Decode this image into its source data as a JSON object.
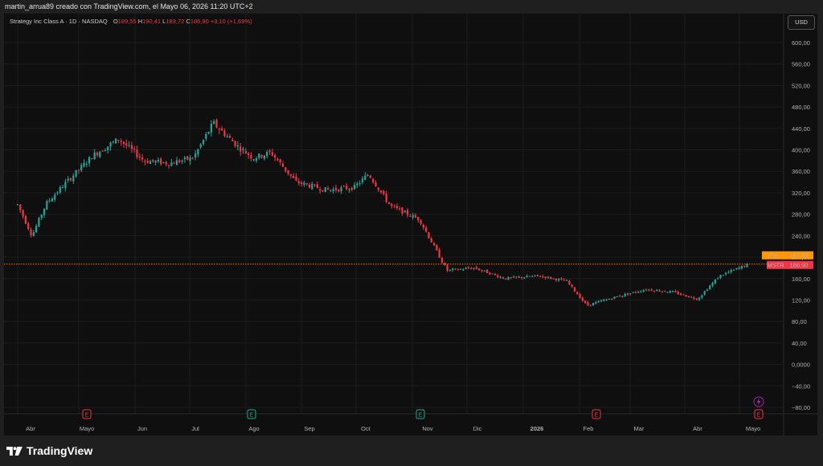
{
  "header": {
    "creator_line": "martin_arrua89 creado con TradingView.com, el Mayo 06, 2026 11:20 UTC+2"
  },
  "legend": {
    "symbol": "Strategy Inc Class A · 1D · NASDAQ",
    "o_label": "O",
    "o_value": "189,55",
    "h_label": "H",
    "h_value": "190,41",
    "l_label": "L",
    "l_value": "183,72",
    "c_label": "C",
    "c_value": "186,90",
    "change": "+3,10 (+1,69%)"
  },
  "currency_button": "USD",
  "brand": {
    "name": "TradingView"
  },
  "colors": {
    "up": "#26a69a",
    "down": "#f23645",
    "pre_tag": "#ff9800",
    "last_price_tag": "#f23645",
    "earnings_down": "#f23645",
    "earnings_up": "#22ab94",
    "dividend_icon": "#9c27b0"
  },
  "price_tags": {
    "pre_label": "Pre",
    "pre_value": "187,00",
    "symbol_label": "MSTR",
    "last_value": "186,90"
  },
  "earnings_markers": [
    {
      "month": "Mayo",
      "label": "E",
      "kind": "down"
    },
    {
      "month": "Ago",
      "label": "E",
      "kind": "up"
    },
    {
      "month": "Nov",
      "label": "E",
      "kind": "up"
    },
    {
      "month": "Feb",
      "label": "E",
      "kind": "down"
    },
    {
      "month": "Mayo-2026",
      "label": "E",
      "kind": "down"
    }
  ],
  "chart_data": {
    "type": "candlestick",
    "x_tick_labels": [
      "Abr",
      "Mayo",
      "Jun",
      "Jul",
      "Ago",
      "Sep",
      "Oct",
      "Nov",
      "Dic",
      "2026",
      "Feb",
      "Mar",
      "Abr",
      "Mayo"
    ],
    "y_tick_labels": [
      "600,00",
      "560,00",
      "520,00",
      "480,00",
      "440,00",
      "400,00",
      "360,00",
      "320,00",
      "280,00",
      "240,00",
      "200,00",
      "160,00",
      "120,00",
      "80,00",
      "40,00",
      "0,0000",
      "−40,00",
      "−80,00"
    ],
    "ylim": [
      -92,
      620
    ],
    "grid": true,
    "last_price": 186.9,
    "series_close_approx": [
      {
        "x": "2025-04-01",
        "y": 298
      },
      {
        "x": "2025-04-08",
        "y": 240
      },
      {
        "x": "2025-04-15",
        "y": 300
      },
      {
        "x": "2025-04-25",
        "y": 340
      },
      {
        "x": "2025-05-09",
        "y": 390
      },
      {
        "x": "2025-05-23",
        "y": 420
      },
      {
        "x": "2025-06-06",
        "y": 380
      },
      {
        "x": "2025-06-20",
        "y": 375
      },
      {
        "x": "2025-07-03",
        "y": 385
      },
      {
        "x": "2025-07-14",
        "y": 450
      },
      {
        "x": "2025-07-28",
        "y": 405
      },
      {
        "x": "2025-08-05",
        "y": 385
      },
      {
        "x": "2025-08-15",
        "y": 395
      },
      {
        "x": "2025-08-29",
        "y": 340
      },
      {
        "x": "2025-09-15",
        "y": 325
      },
      {
        "x": "2025-09-30",
        "y": 330
      },
      {
        "x": "2025-10-08",
        "y": 355
      },
      {
        "x": "2025-10-20",
        "y": 295
      },
      {
        "x": "2025-11-05",
        "y": 270
      },
      {
        "x": "2025-11-20",
        "y": 175
      },
      {
        "x": "2025-12-05",
        "y": 180
      },
      {
        "x": "2025-12-22",
        "y": 160
      },
      {
        "x": "2026-01-10",
        "y": 165
      },
      {
        "x": "2026-01-25",
        "y": 155
      },
      {
        "x": "2026-02-05",
        "y": 110
      },
      {
        "x": "2026-02-20",
        "y": 125
      },
      {
        "x": "2026-03-10",
        "y": 140
      },
      {
        "x": "2026-03-25",
        "y": 135
      },
      {
        "x": "2026-04-08",
        "y": 122
      },
      {
        "x": "2026-04-20",
        "y": 165
      },
      {
        "x": "2026-05-06",
        "y": 186.9
      }
    ]
  }
}
